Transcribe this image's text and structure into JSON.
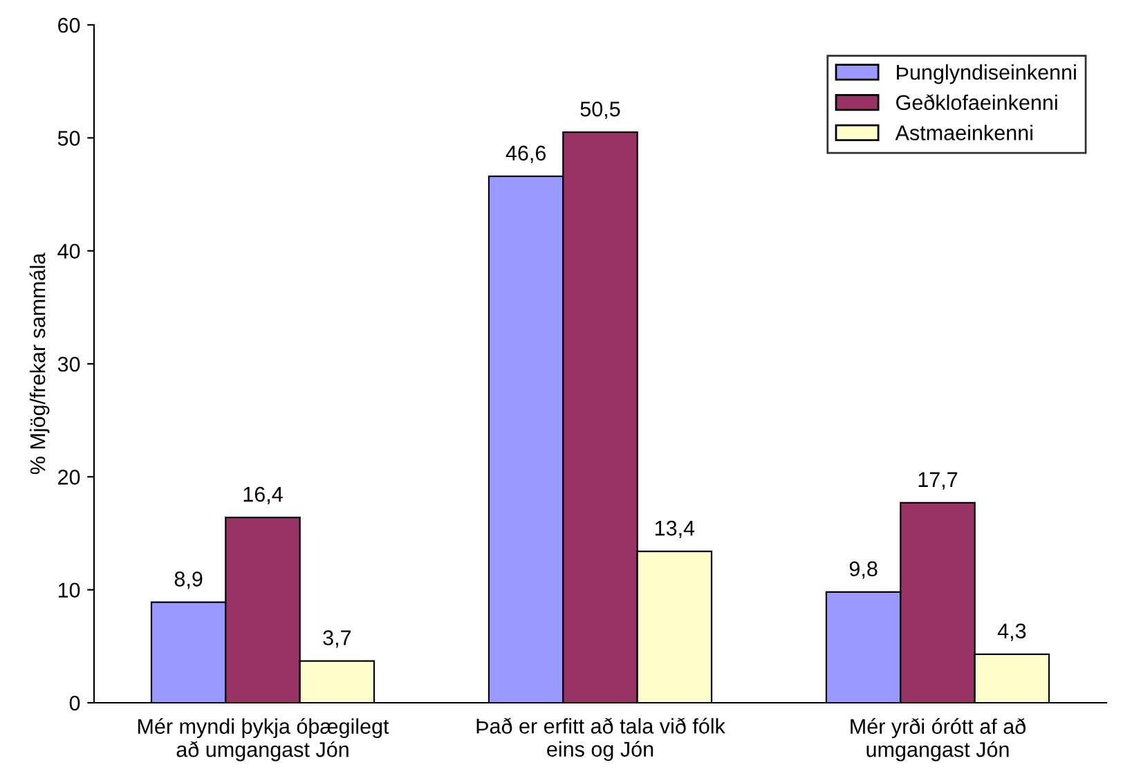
{
  "chart_data": {
    "type": "bar",
    "ylabel": "% Mjög/frekar sammála",
    "categories": [
      "Mér myndi þykja óþægilegt\nað umgangast Jón",
      "Það er erfitt að tala við fólk\neins og Jón",
      "Mér yrði órótt af að\numgangast Jón"
    ],
    "series": [
      {
        "name": "Þunglyndiseinkenni",
        "color": "#9999ff",
        "values": [
          8.9,
          46.6,
          9.8
        ],
        "value_labels": [
          "8,9",
          "46,6",
          "9,8"
        ]
      },
      {
        "name": "Geðklofaeinkenni",
        "color": "#993366",
        "values": [
          16.4,
          50.5,
          17.7
        ],
        "value_labels": [
          "16,4",
          "50,5",
          "17,7"
        ]
      },
      {
        "name": "Astmaeinkenni",
        "color": "#ffffcc",
        "values": [
          3.7,
          13.4,
          4.3
        ],
        "value_labels": [
          "3,7",
          "13,4",
          "4,3"
        ]
      }
    ],
    "ylim": [
      0,
      60
    ],
    "yticks": [
      0,
      10,
      20,
      30,
      40,
      50,
      60
    ],
    "grid": false,
    "legend": "top right"
  }
}
